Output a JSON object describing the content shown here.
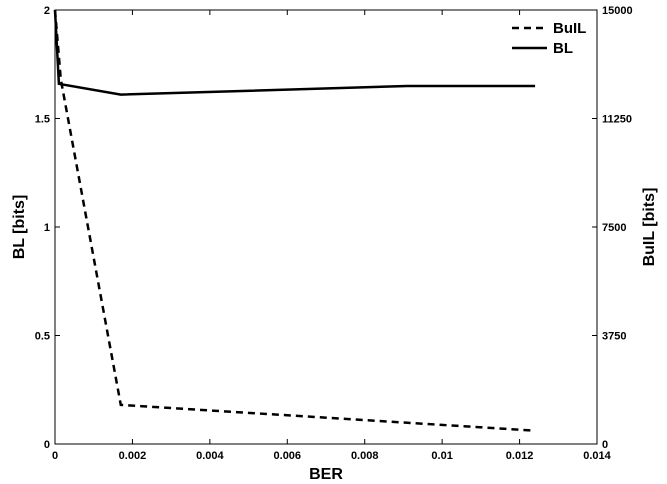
{
  "chart_data": {
    "type": "line",
    "xlabel": "BER",
    "ylabel": "BL [bits]",
    "y2label": "BuIL [bits]",
    "xlim": [
      0,
      0.014
    ],
    "ylim": [
      0,
      2
    ],
    "y2lim": [
      0,
      15000
    ],
    "xticks": [
      0,
      0.002,
      0.004,
      0.006,
      0.008,
      0.01,
      0.012,
      0.014
    ],
    "xtick_labels": [
      "0",
      "0.002",
      "0.004",
      "0.006",
      "0.008",
      "0.01",
      "0.012",
      "0.014"
    ],
    "yticks": [
      0,
      0.5,
      1,
      1.5,
      2
    ],
    "ytick_labels": [
      "0",
      "0.5",
      "1",
      "1.5",
      "2"
    ],
    "y2ticks": [
      0,
      3750,
      7500,
      11250,
      15000
    ],
    "y2tick_labels": [
      "0",
      "3750",
      "7500",
      "11250",
      "15000"
    ],
    "grid": false,
    "legend_position": "top-right",
    "series": [
      {
        "name": "BuIL",
        "axis": "right",
        "style": "dashed",
        "x": [
          0,
          0.00015,
          0.0017,
          0.0124
        ],
        "y": [
          15000,
          12600,
          1350,
          460
        ]
      },
      {
        "name": "BL",
        "axis": "left",
        "style": "solid",
        "x": [
          0,
          0.0001,
          0.0017,
          0.0091,
          0.0124
        ],
        "y": [
          2.0,
          1.66,
          1.61,
          1.65,
          1.65
        ]
      }
    ],
    "colors": {
      "line": "#000000",
      "axis": "#000000"
    }
  }
}
